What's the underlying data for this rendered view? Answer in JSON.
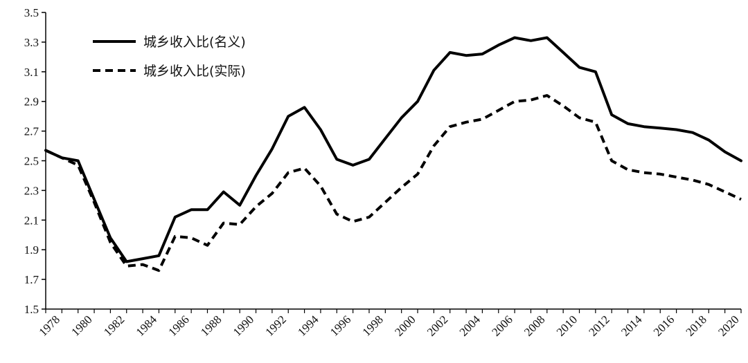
{
  "chart_data": {
    "type": "line",
    "title": "",
    "xlabel": "",
    "ylabel": "",
    "ylim": [
      1.5,
      3.5
    ],
    "yticks": [
      "1.5",
      "1.7",
      "1.9",
      "2.1",
      "2.3",
      "2.5",
      "2.7",
      "2.9",
      "3.1",
      "3.3",
      "3.5"
    ],
    "xticks": [
      "1978",
      "1980",
      "1982",
      "1984",
      "1986",
      "1988",
      "1990",
      "1992",
      "1994",
      "1996",
      "1998",
      "2000",
      "2002",
      "2004",
      "2006",
      "2008",
      "2010",
      "2012",
      "2014",
      "2016",
      "2018",
      "2020"
    ],
    "grid": false,
    "legend_position": "top-left",
    "x": [
      1978,
      1979,
      1980,
      1981,
      1982,
      1983,
      1984,
      1985,
      1986,
      1987,
      1988,
      1989,
      1990,
      1991,
      1992,
      1993,
      1994,
      1995,
      1996,
      1997,
      1998,
      1999,
      2000,
      2001,
      2002,
      2003,
      2004,
      2005,
      2006,
      2007,
      2008,
      2009,
      2010,
      2011,
      2012,
      2013,
      2014,
      2015,
      2016,
      2017,
      2018,
      2019,
      2020,
      2021
    ],
    "series": [
      {
        "name": "城乡收入比(名义)",
        "style": "solid",
        "color": "#000000",
        "values": [
          2.57,
          2.52,
          2.5,
          2.24,
          1.98,
          1.82,
          1.84,
          1.86,
          2.12,
          2.17,
          2.17,
          2.29,
          2.2,
          2.4,
          2.58,
          2.8,
          2.86,
          2.71,
          2.51,
          2.47,
          2.51,
          2.65,
          2.79,
          2.9,
          3.11,
          3.23,
          3.21,
          3.22,
          3.28,
          3.33,
          3.31,
          3.33,
          3.23,
          3.13,
          3.1,
          2.81,
          2.75,
          2.73,
          2.72,
          2.71,
          2.69,
          2.64,
          2.56,
          2.5
        ]
      },
      {
        "name": "城乡收入比(实际)",
        "style": "dashed",
        "color": "#000000",
        "values": [
          2.57,
          2.52,
          2.47,
          2.22,
          1.95,
          1.79,
          1.8,
          1.76,
          1.99,
          1.98,
          1.93,
          2.08,
          2.07,
          2.19,
          2.28,
          2.42,
          2.45,
          2.33,
          2.14,
          2.09,
          2.12,
          2.22,
          2.32,
          2.41,
          2.6,
          2.73,
          2.76,
          2.78,
          2.84,
          2.9,
          2.91,
          2.94,
          2.87,
          2.79,
          2.76,
          2.5,
          2.44,
          2.42,
          2.41,
          2.39,
          2.37,
          2.34,
          2.29,
          2.24
        ]
      }
    ]
  }
}
